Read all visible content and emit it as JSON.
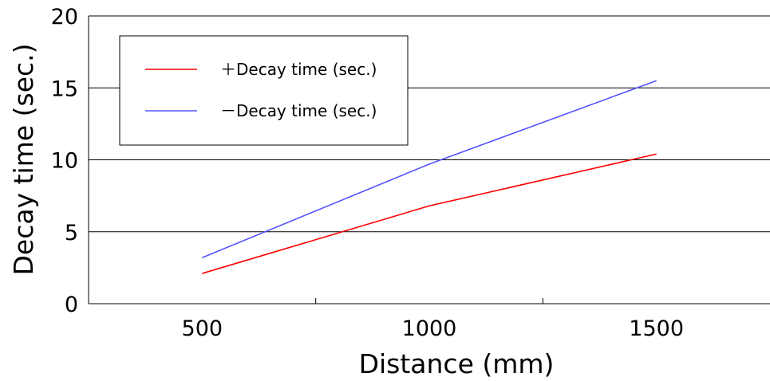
{
  "chart_data": {
    "type": "line",
    "xlabel": "Distance (mm)",
    "ylabel": "Decay time (sec.)",
    "x": [
      500,
      1000,
      1500
    ],
    "x_ticks": [
      "500",
      "1000",
      "1500"
    ],
    "xlim": [
      250,
      1750
    ],
    "ylim": [
      0,
      20
    ],
    "y_ticks": [
      "0",
      "5",
      "10",
      "15",
      "20"
    ],
    "grid": true,
    "legend_position": "top-left",
    "series": [
      {
        "name": "＋Decay time (sec.)",
        "color": "#ff0000",
        "values": [
          2.1,
          6.8,
          10.4
        ]
      },
      {
        "name": "－Decay time (sec.)",
        "color": "#5555ff",
        "values": [
          3.2,
          9.7,
          15.5
        ]
      }
    ]
  }
}
